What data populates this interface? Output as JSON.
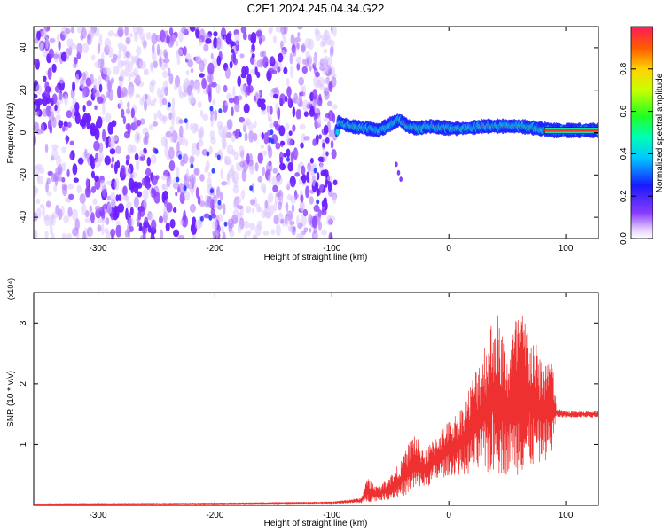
{
  "title": "C2E1.2024.245.04.34.G22",
  "chart_data": [
    {
      "type": "heatmap",
      "xlabel": "Height of straight line (km)",
      "ylabel": "Frequency (Hz)",
      "xlim": [
        -355,
        128
      ],
      "ylim": [
        -50,
        50
      ],
      "xticks": [
        "-300",
        "-200",
        "-100",
        "0",
        "100"
      ],
      "xtick_values": [
        -300,
        -200,
        -100,
        0,
        100
      ],
      "yticks": [
        "-40",
        "-20",
        "0",
        "20",
        "40"
      ],
      "ytick_values": [
        -40,
        -20,
        0,
        20,
        40
      ],
      "colorbar": {
        "label": "Normalized spectral amplitude",
        "range": [
          0,
          1
        ],
        "ticks": [
          "0.0",
          "0.2",
          "0.4",
          "0.6",
          "0.8"
        ],
        "tick_values": [
          0.0,
          0.2,
          0.4,
          0.6,
          0.8
        ]
      },
      "features": {
        "noise_region_x": [
          -355,
          -97
        ],
        "signal_track_center_hz": [
          {
            "x": -95,
            "y": 5
          },
          {
            "x": -85,
            "y": 3
          },
          {
            "x": -70,
            "y": 2
          },
          {
            "x": -60,
            "y": 1
          },
          {
            "x": -50,
            "y": 4
          },
          {
            "x": -42,
            "y": 6
          },
          {
            "x": -35,
            "y": 3
          },
          {
            "x": -28,
            "y": 2
          },
          {
            "x": -15,
            "y": 3
          },
          {
            "x": 0,
            "y": 2
          },
          {
            "x": 15,
            "y": 2
          },
          {
            "x": 30,
            "y": 3
          },
          {
            "x": 45,
            "y": 3
          },
          {
            "x": 60,
            "y": 3
          },
          {
            "x": 75,
            "y": 2
          },
          {
            "x": 90,
            "y": 1
          },
          {
            "x": 110,
            "y": 1
          },
          {
            "x": 128,
            "y": 1
          }
        ]
      },
      "grid": false
    },
    {
      "type": "line",
      "xlabel": "Height of straight line (km)",
      "ylabel": "SNR (10 * v/v)",
      "multiplier_label": "(x10⁴)",
      "xlim": [
        -355,
        128
      ],
      "ylim": [
        0,
        3.5
      ],
      "xticks": [
        "-300",
        "-200",
        "-100",
        "0",
        "100"
      ],
      "xtick_values": [
        -300,
        -200,
        -100,
        0,
        100
      ],
      "yticks": [
        "1",
        "2",
        "3"
      ],
      "ytick_values": [
        1,
        2,
        3
      ],
      "color": "#ee3030",
      "grid": false,
      "envelope": [
        {
          "x": -355,
          "lo": 0.01,
          "hi": 0.03
        },
        {
          "x": -200,
          "lo": 0.02,
          "hi": 0.04
        },
        {
          "x": -100,
          "lo": 0.03,
          "hi": 0.06
        },
        {
          "x": -75,
          "lo": 0.04,
          "hi": 0.12
        },
        {
          "x": -70,
          "lo": 0.05,
          "hi": 0.45
        },
        {
          "x": -60,
          "lo": 0.08,
          "hi": 0.3
        },
        {
          "x": -50,
          "lo": 0.1,
          "hi": 0.5
        },
        {
          "x": -40,
          "lo": 0.15,
          "hi": 0.75
        },
        {
          "x": -30,
          "lo": 0.2,
          "hi": 1.25
        },
        {
          "x": -20,
          "lo": 0.3,
          "hi": 0.9
        },
        {
          "x": -10,
          "lo": 0.4,
          "hi": 1.2
        },
        {
          "x": 0,
          "lo": 0.5,
          "hi": 1.4
        },
        {
          "x": 10,
          "lo": 0.5,
          "hi": 1.6
        },
        {
          "x": 20,
          "lo": 0.5,
          "hi": 2.1
        },
        {
          "x": 30,
          "lo": 0.5,
          "hi": 2.7
        },
        {
          "x": 40,
          "lo": 0.5,
          "hi": 3.3
        },
        {
          "x": 50,
          "lo": 0.5,
          "hi": 2.6
        },
        {
          "x": 60,
          "lo": 0.5,
          "hi": 3.3
        },
        {
          "x": 70,
          "lo": 0.6,
          "hi": 2.9
        },
        {
          "x": 80,
          "lo": 0.7,
          "hi": 2.4
        },
        {
          "x": 88,
          "lo": 0.8,
          "hi": 2.6
        },
        {
          "x": 92,
          "lo": 1.45,
          "hi": 1.6
        },
        {
          "x": 100,
          "lo": 1.45,
          "hi": 1.55
        },
        {
          "x": 128,
          "lo": 1.45,
          "hi": 1.55
        }
      ]
    }
  ]
}
